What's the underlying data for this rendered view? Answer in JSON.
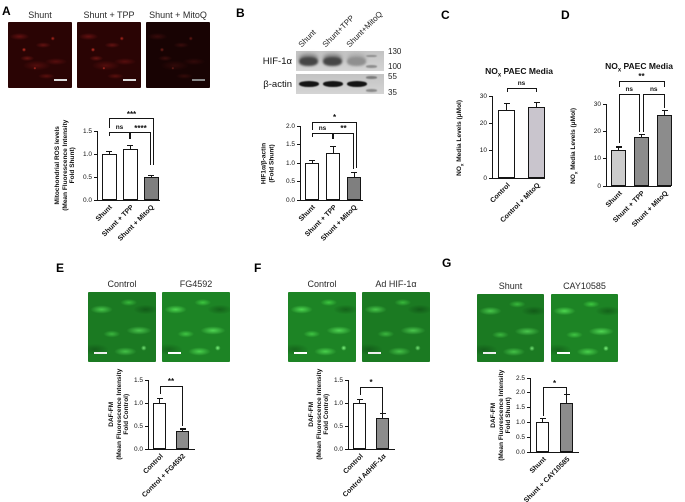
{
  "panels": {
    "A": {
      "label": "A",
      "images": [
        {
          "label": "Shunt"
        },
        {
          "label": "Shunt + TPP"
        },
        {
          "label": "Shunt + MitoQ"
        }
      ]
    },
    "B": {
      "label": "B",
      "blot": {
        "lanes": [
          "Shunt",
          "Shunt+TPP",
          "Shunt+MitoQ"
        ],
        "rows": [
          {
            "name": "HIF-1α",
            "markers": [
              "130",
              "100"
            ]
          },
          {
            "name": "β-actin",
            "markers": [
              "55",
              "35"
            ]
          }
        ]
      }
    },
    "C": {
      "label": "C"
    },
    "D": {
      "label": "D"
    },
    "E": {
      "label": "E",
      "images": [
        {
          "label": "Control"
        },
        {
          "label": "FG4592"
        }
      ]
    },
    "F": {
      "label": "F",
      "images": [
        {
          "label": "Control"
        },
        {
          "label": "Ad HIF-1α"
        }
      ]
    },
    "G": {
      "label": "G",
      "images": [
        {
          "label": "Shunt"
        },
        {
          "label": "CAY10585"
        }
      ]
    }
  },
  "colors": {
    "bar_white": "#ffffff",
    "bar_gray": "#8c8c8c",
    "bar_light_gray": "#cccccc",
    "bar_lavender": "#c9c5cd",
    "red_fluorescence_bg": "#2a0404",
    "green_fluorescence_bg": "#1b7a22",
    "axis": "#151515"
  },
  "chart_data": [
    {
      "type": "bar",
      "panel": "A",
      "ylabel_lines": [
        "Mitochondrial ROS levels",
        "(Mean Fluorescence Intensity",
        "Fold Shunt)"
      ],
      "categories": [
        "Shunt",
        "Shunt + TPP",
        "Shunt + MitoQ"
      ],
      "values": [
        1.0,
        1.1,
        0.49
      ],
      "errors": [
        0.05,
        0.08,
        0.045
      ],
      "bar_colors": [
        "#ffffff",
        "#ffffff",
        "#7f7f7f"
      ],
      "yticks": [
        "0.0",
        "0.5",
        "1.0",
        "1.5"
      ],
      "ymax": 1.5,
      "sig": [
        {
          "from": 0,
          "to": 1,
          "label": "ns",
          "y": 1.47,
          "drop": 4,
          "drop2": 7
        },
        {
          "from": 1,
          "to": 2,
          "label": "****",
          "y": 1.47,
          "drop": 7,
          "drop2": 33
        },
        {
          "from": 0,
          "to": 2,
          "label": "***",
          "y": 1.78,
          "drop": 10,
          "drop2": 47,
          "xoff2": 3
        }
      ]
    },
    {
      "type": "bar",
      "panel": "B",
      "ylabel_lines": [
        "HIF1α/β-actin",
        "(Fold Shunt)"
      ],
      "categories": [
        "Shunt",
        "Shunt + TPP",
        "Shunt + MitoQ"
      ],
      "values": [
        1.0,
        1.27,
        0.61
      ],
      "errors": [
        0.07,
        0.17,
        0.13
      ],
      "bar_colors": [
        "#ffffff",
        "#ffffff",
        "#7f7f7f"
      ],
      "yticks": [
        "0.0",
        "0.5",
        "1.0",
        "1.5",
        "2.0"
      ],
      "ymax": 2.0,
      "sig": [
        {
          "from": 0,
          "to": 1,
          "label": "ns",
          "y": 1.82,
          "drop": 4,
          "drop2": 6
        },
        {
          "from": 1,
          "to": 2,
          "label": "**",
          "y": 1.82,
          "drop": 6,
          "drop2": 36
        },
        {
          "from": 0,
          "to": 2,
          "label": "*",
          "y": 2.12,
          "drop": 8,
          "drop2": 46,
          "xoff2": 3
        }
      ]
    },
    {
      "type": "bar",
      "panel": "C",
      "title_parts": [
        {
          "t": "NO"
        },
        {
          "t": "x",
          "sub": true
        },
        {
          "t": " PAEC Media"
        }
      ],
      "ylabel_parts": [
        {
          "t": "NO"
        },
        {
          "t": "x",
          "sub": true
        },
        {
          "t": " Media Levels (μMol)"
        }
      ],
      "categories": [
        "Control",
        "Control + MitoQ"
      ],
      "values": [
        25,
        26
      ],
      "errors": [
        2.2,
        1.5
      ],
      "bar_colors": [
        "#ffffff",
        "#c9c5cd"
      ],
      "yticks": [
        "0",
        "10",
        "20",
        "30"
      ],
      "ymax": 30,
      "sig": [
        {
          "from": 0,
          "to": 1,
          "label": "ns",
          "y": 33,
          "drop": 4,
          "drop2": 4
        }
      ]
    },
    {
      "type": "bar",
      "panel": "D",
      "title_parts": [
        {
          "t": "NO"
        },
        {
          "t": "x",
          "sub": true
        },
        {
          "t": " PAEC Media"
        }
      ],
      "ylabel_parts": [
        {
          "t": "NO"
        },
        {
          "t": "x",
          "sub": true
        },
        {
          "t": " Media Levels (μMol)"
        }
      ],
      "categories": [
        "Shunt",
        "Shunt + TPP",
        "Shunt + MitoQ"
      ],
      "values": [
        13,
        17.8,
        26
      ],
      "errors": [
        1.3,
        0.9,
        1.5
      ],
      "bar_colors": [
        "#cccccc",
        "#8c8c8c",
        "#8c8c8c"
      ],
      "yticks": [
        "0",
        "10",
        "20",
        "30"
      ],
      "ymax": 30,
      "sig": [
        {
          "from": 0,
          "to": 1,
          "label": "ns",
          "y": 33.5,
          "drop": 49,
          "drop2": 38,
          "xoff2": -1.5
        },
        {
          "from": 1,
          "to": 2,
          "label": "ns",
          "y": 33.5,
          "drop": 38,
          "drop2": 14,
          "xoff1": 1.5
        },
        {
          "from": 0,
          "to": 2,
          "label": "**",
          "y": 38.5,
          "drop": 6,
          "drop2": 6
        }
      ]
    },
    {
      "type": "bar",
      "panel": "E",
      "ylabel_lines": [
        "DAF-FM",
        "(Mean Fluorescence Intensity",
        "Fold Control)"
      ],
      "categories": [
        "Control",
        "Control + FG4592"
      ],
      "values": [
        1.0,
        0.4
      ],
      "errors": [
        0.1,
        0.035
      ],
      "bar_colors": [
        "#ffffff",
        "#8c8c8c"
      ],
      "yticks": [
        "0.0",
        "0.5",
        "1.0",
        "1.5"
      ],
      "ymax": 1.5,
      "sig": [
        {
          "from": 0,
          "to": 1,
          "label": "**",
          "y": 1.38,
          "drop": 8,
          "drop2": 40
        }
      ]
    },
    {
      "type": "bar",
      "panel": "F",
      "ylabel_lines": [
        "DAF-FM",
        "(Mean Fluorescence Intensity",
        "Fold Control)"
      ],
      "categories": [
        "Control",
        "Control AdHIF-1α"
      ],
      "values": [
        1.0,
        0.68
      ],
      "errors": [
        0.08,
        0.09
      ],
      "bar_colors": [
        "#ffffff",
        "#8c8c8c"
      ],
      "yticks": [
        "0.0",
        "0.5",
        "1.0",
        "1.5"
      ],
      "ymax": 1.5,
      "sig": [
        {
          "from": 0,
          "to": 1,
          "label": "*",
          "y": 1.35,
          "drop": 8,
          "drop2": 26
        }
      ]
    },
    {
      "type": "bar",
      "panel": "G",
      "ylabel_lines": [
        "DAF-FM",
        "(Mean Fluorescence Intensity",
        "Fold Shunt)"
      ],
      "categories": [
        "Shunt",
        "Shunt + CAY10585"
      ],
      "values": [
        1.0,
        1.65
      ],
      "errors": [
        0.14,
        0.28
      ],
      "bar_colors": [
        "#ffffff",
        "#8c8c8c"
      ],
      "yticks": [
        "0.0",
        "0.5",
        "1.0",
        "1.5",
        "2.0",
        "2.5"
      ],
      "ymax": 2.5,
      "sig": [
        {
          "from": 0,
          "to": 1,
          "label": "*",
          "y": 2.18,
          "drop": 29,
          "drop2": 7
        }
      ]
    }
  ]
}
